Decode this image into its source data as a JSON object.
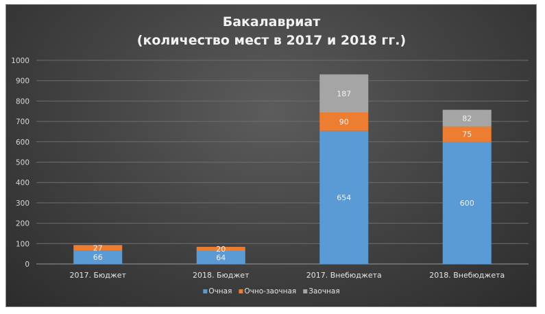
{
  "chart_data": {
    "type": "bar",
    "stacked": true,
    "title_line1": "Бакалавриат",
    "title_line2": "(количество мест в 2017 и 2018 гг.)",
    "categories": [
      "2017. Бюджет",
      "2018. Бюджет",
      "2017. Внебюджета",
      "2018. Внебюджета"
    ],
    "series": [
      {
        "name": "Очная",
        "color": "#5b9bd5",
        "values": [
          66,
          64,
          654,
          600
        ]
      },
      {
        "name": "Очно-заочная",
        "color": "#ed7d31",
        "values": [
          27,
          20,
          90,
          75
        ]
      },
      {
        "name": "Заочная",
        "color": "#a5a5a5",
        "values": [
          null,
          null,
          187,
          82
        ]
      }
    ],
    "ylim": [
      0,
      1000
    ],
    "yticks": [
      0,
      100,
      200,
      300,
      400,
      500,
      600,
      700,
      800,
      900,
      1000
    ],
    "grid": true,
    "legend_position": "bottom"
  }
}
